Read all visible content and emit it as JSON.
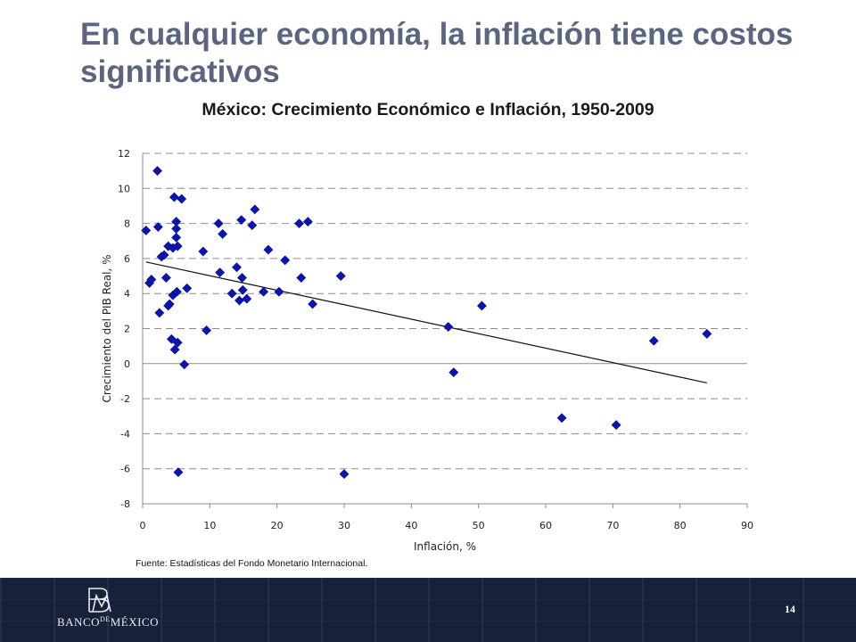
{
  "slide": {
    "title": "En cualquier economía, la inflación tiene costos significativos",
    "source": "Fuente: Estadísticas del Fondo Monetario Internacional.",
    "page_number": "14",
    "footer": {
      "logo_icon": "banco-de-mexico-monogram-icon",
      "bank_name_left": "BANCO",
      "bank_name_de": "DE",
      "bank_name_right": "MÉXICO",
      "background_color": "#17223a"
    },
    "title_color": "#5b6580"
  },
  "chart_data": {
    "type": "scatter",
    "title": "México: Crecimiento Económico e Inflación, 1950-2009",
    "xlabel": "Inflación, %",
    "ylabel": "Crecimiento del PIB Real, %",
    "xlim": [
      0,
      90
    ],
    "ylim": [
      -8,
      12
    ],
    "x_ticks": [
      0,
      10,
      20,
      30,
      40,
      50,
      60,
      70,
      80,
      90
    ],
    "y_ticks": [
      -8,
      -6,
      -4,
      -2,
      0,
      2,
      4,
      6,
      8,
      10,
      12
    ],
    "grid": "horizontal dashed",
    "marker": "diamond",
    "marker_color": "#0a14b4",
    "series": [
      {
        "points": [
          [
            0.5,
            7.6
          ],
          [
            1.0,
            4.6
          ],
          [
            1.3,
            4.8
          ],
          [
            2.2,
            11.0
          ],
          [
            2.3,
            7.8
          ],
          [
            2.5,
            2.9
          ],
          [
            2.8,
            6.1
          ],
          [
            3.2,
            6.2
          ],
          [
            3.5,
            4.9
          ],
          [
            3.8,
            6.7
          ],
          [
            3.8,
            3.3
          ],
          [
            4.0,
            3.4
          ],
          [
            4.3,
            1.4
          ],
          [
            4.5,
            6.6
          ],
          [
            4.5,
            3.9
          ],
          [
            4.7,
            9.5
          ],
          [
            4.8,
            0.8
          ],
          [
            5.0,
            8.1
          ],
          [
            5.0,
            7.7
          ],
          [
            5.0,
            7.2
          ],
          [
            5.1,
            4.1
          ],
          [
            5.2,
            6.7
          ],
          [
            5.2,
            1.2
          ],
          [
            5.3,
            -6.2
          ],
          [
            5.8,
            9.4
          ],
          [
            6.2,
            -0.05
          ],
          [
            6.6,
            4.3
          ],
          [
            9.0,
            6.4
          ],
          [
            9.5,
            1.9
          ],
          [
            11.3,
            8.0
          ],
          [
            11.5,
            5.2
          ],
          [
            11.9,
            7.4
          ],
          [
            13.3,
            4.0
          ],
          [
            14.0,
            5.5
          ],
          [
            14.4,
            3.6
          ],
          [
            14.7,
            8.2
          ],
          [
            14.8,
            4.9
          ],
          [
            14.9,
            4.2
          ],
          [
            15.5,
            3.7
          ],
          [
            16.3,
            7.9
          ],
          [
            16.7,
            8.8
          ],
          [
            18.0,
            4.1
          ],
          [
            18.7,
            6.5
          ],
          [
            20.3,
            4.1
          ],
          [
            21.2,
            5.9
          ],
          [
            23.3,
            8.0
          ],
          [
            23.6,
            4.9
          ],
          [
            24.6,
            8.1
          ],
          [
            25.3,
            3.4
          ],
          [
            29.5,
            5.0
          ],
          [
            30.0,
            -6.3
          ],
          [
            45.5,
            2.1
          ],
          [
            46.3,
            -0.5
          ],
          [
            50.5,
            3.3
          ],
          [
            62.4,
            -3.1
          ],
          [
            70.5,
            -3.5
          ],
          [
            76.1,
            1.3
          ],
          [
            84.0,
            1.7
          ]
        ]
      }
    ],
    "trendline": {
      "x": [
        0.5,
        84.0
      ],
      "y": [
        5.8,
        -1.1
      ]
    }
  }
}
